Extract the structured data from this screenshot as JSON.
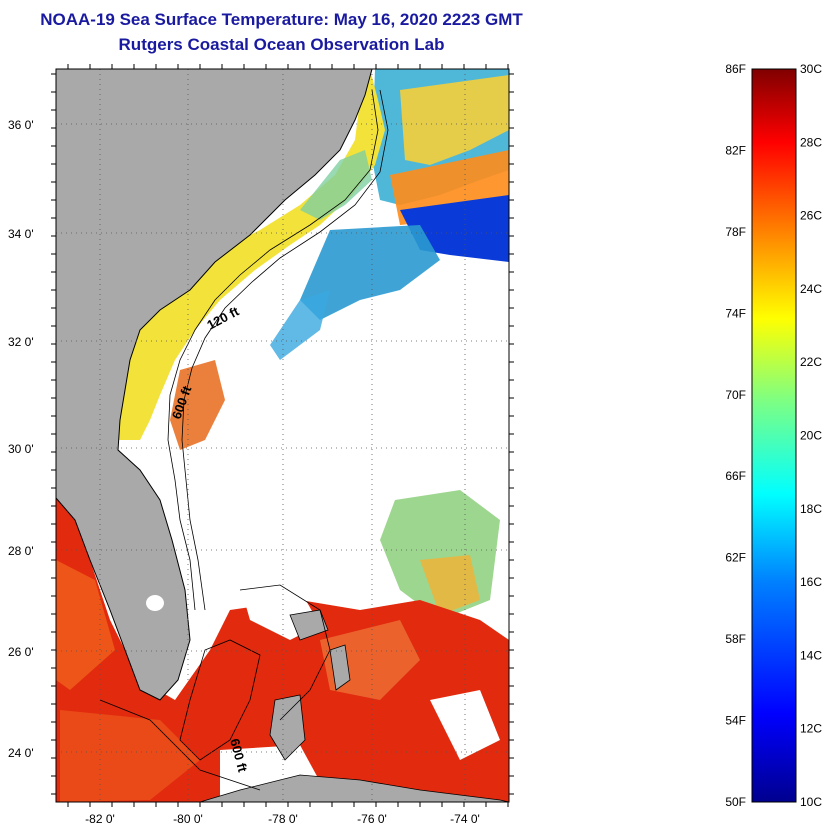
{
  "title_line1": "NOAA-19 Sea Surface Temperature:  May 16, 2020 2223 GMT",
  "title_line2": "Rutgers Coastal Ocean Observation Lab",
  "map": {
    "lat_labels": [
      "36 0'",
      "34 0'",
      "32 0'",
      "30 0'",
      "28 0'",
      "26 0'",
      "24 0'"
    ],
    "lon_labels": [
      "-82 0'",
      "-80 0'",
      "-78 0'",
      "-76 0'",
      "-74 0'"
    ],
    "contour_labels": [
      "120 ft",
      "600 ft",
      "600 ft"
    ],
    "colors": {
      "land": "#a9a9a9",
      "missing": "#ffffff"
    }
  },
  "colorbar": {
    "fahrenheit_labels": [
      "86F",
      "82F",
      "78F",
      "74F",
      "70F",
      "66F",
      "62F",
      "58F",
      "54F",
      "50F"
    ],
    "celsius_labels": [
      "30C",
      "28C",
      "26C",
      "24C",
      "22C",
      "20C",
      "18C",
      "16C",
      "14C",
      "12C",
      "10C"
    ],
    "range_c": [
      10,
      30
    ],
    "colors": [
      "#00008f",
      "#0000ff",
      "#0080ff",
      "#00ffff",
      "#80ff80",
      "#ffff00",
      "#ff8000",
      "#ff0000",
      "#800000"
    ]
  }
}
